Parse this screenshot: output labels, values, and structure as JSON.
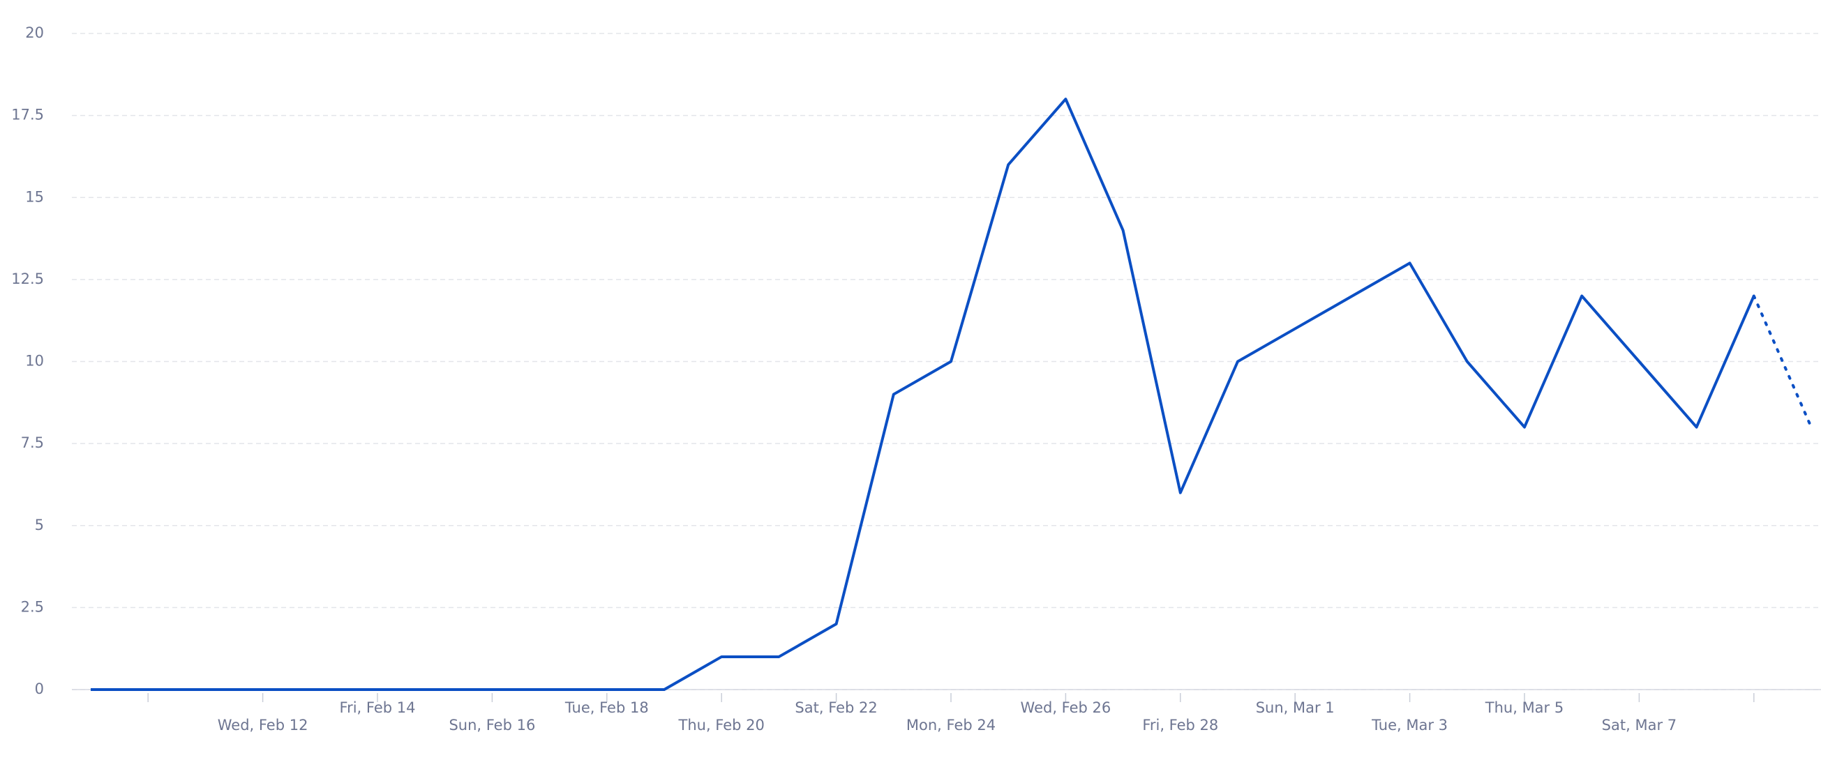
{
  "chart_data": {
    "type": "line",
    "x": [
      null,
      null,
      null,
      "Wed, Feb 12",
      null,
      "Fri, Feb 14",
      null,
      "Sun, Feb 16",
      null,
      "Tue, Feb 18",
      null,
      "Thu, Feb 20",
      null,
      "Sat, Feb 22",
      null,
      "Mon, Feb 24",
      null,
      "Wed, Feb 26",
      null,
      "Fri, Feb 28",
      null,
      "Sun, Mar 1",
      null,
      "Tue, Mar 3",
      null,
      "Thu, Mar 5",
      null,
      "Sat, Mar 7",
      null,
      null,
      null
    ],
    "series": [
      {
        "color": "#0b4fc4",
        "values": [
          0,
          0,
          0,
          0,
          0,
          0,
          0,
          0,
          0,
          0,
          0,
          1,
          1,
          2,
          9,
          10,
          16,
          18,
          14,
          6,
          10,
          11,
          12,
          13,
          10,
          8,
          12,
          10,
          8,
          12,
          8
        ]
      }
    ],
    "ylim": [
      0,
      20
    ],
    "yticks": [
      0,
      2.5,
      5,
      7.5,
      10,
      12.5,
      15,
      17.5,
      20
    ],
    "grid": true,
    "last_segment_dotted": true
  }
}
